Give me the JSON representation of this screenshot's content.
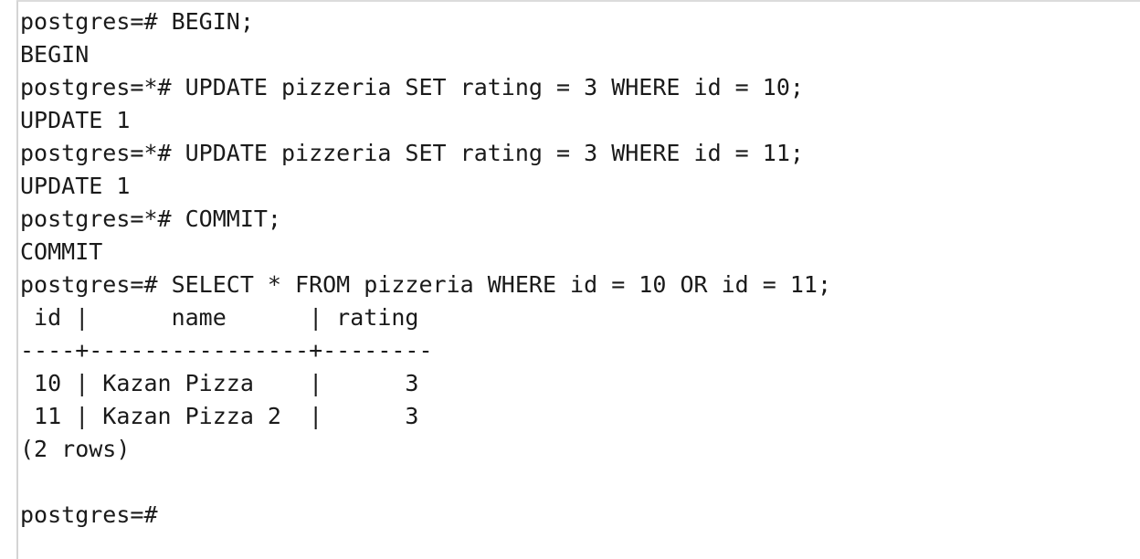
{
  "terminal": {
    "lines": [
      "postgres=# BEGIN;",
      "BEGIN",
      "postgres=*# UPDATE pizzeria SET rating = 3 WHERE id = 10;",
      "UPDATE 1",
      "postgres=*# UPDATE pizzeria SET rating = 3 WHERE id = 11;",
      "UPDATE 1",
      "postgres=*# COMMIT;",
      "COMMIT",
      "postgres=# SELECT * FROM pizzeria WHERE id = 10 OR id = 11;",
      " id |      name      | rating",
      "----+----------------+--------",
      " 10 | Kazan Pizza    |      3",
      " 11 | Kazan Pizza 2  |      3",
      "(2 rows)",
      "",
      "postgres=#"
    ]
  }
}
